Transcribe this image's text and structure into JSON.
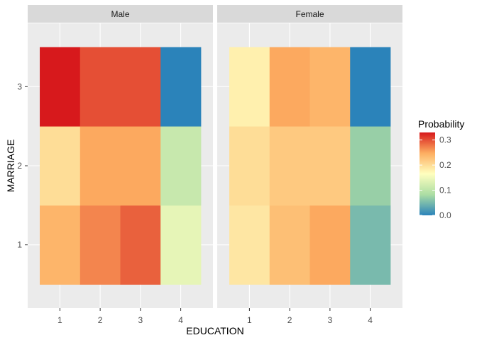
{
  "chart_data": {
    "type": "heatmap",
    "xlabel": "EDUCATION",
    "ylabel": "MARRIAGE",
    "x_categories": [
      "1",
      "2",
      "3",
      "4"
    ],
    "y_categories": [
      "1",
      "2",
      "3"
    ],
    "facets": [
      {
        "label": "Male",
        "values": {
          "1": [
            0.24,
            0.27,
            0.29,
            0.14
          ],
          "2": [
            0.2,
            0.25,
            0.25,
            0.11
          ],
          "3": [
            0.33,
            0.3,
            0.3,
            0.0
          ]
        }
      },
      {
        "label": "Female",
        "values": {
          "1": [
            0.19,
            0.23,
            0.25,
            0.05
          ],
          "2": [
            0.2,
            0.22,
            0.22,
            0.07
          ],
          "3": [
            0.18,
            0.25,
            0.24,
            0.0
          ]
        }
      }
    ],
    "legend": {
      "title": "Probability",
      "position": "right",
      "breaks": [
        "0.0",
        "0.1",
        "0.2",
        "0.3"
      ],
      "break_values": [
        0.0,
        0.1,
        0.2,
        0.3
      ],
      "range": [
        0.0,
        0.33
      ],
      "colors": [
        "#2B83BA",
        "#ABDDA4",
        "#FFFFBF",
        "#FDAE61",
        "#D7191C"
      ]
    }
  }
}
